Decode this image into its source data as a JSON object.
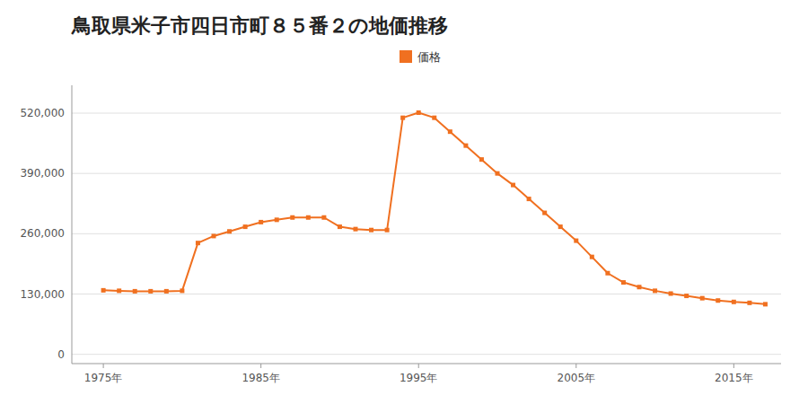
{
  "chart_data": {
    "type": "line",
    "title": "鳥取県米子市四日市町８５番２の地価推移",
    "x": [
      1975,
      1976,
      1977,
      1978,
      1979,
      1980,
      1981,
      1982,
      1983,
      1984,
      1985,
      1986,
      1987,
      1988,
      1989,
      1990,
      1991,
      1992,
      1993,
      1994,
      1995,
      1996,
      1997,
      1998,
      1999,
      2000,
      2001,
      2002,
      2003,
      2004,
      2005,
      2006,
      2007,
      2008,
      2009,
      2010,
      2011,
      2012,
      2013,
      2014,
      2015,
      2016,
      2017
    ],
    "series": [
      {
        "name": "価格",
        "color": "#f07020",
        "marker": "square",
        "values": [
          138000,
          137000,
          136000,
          136000,
          136000,
          137000,
          240000,
          255000,
          265000,
          275000,
          285000,
          290000,
          295000,
          295000,
          295000,
          275000,
          270000,
          268000,
          268000,
          510000,
          521000,
          510000,
          480000,
          450000,
          420000,
          390000,
          365000,
          335000,
          305000,
          275000,
          245000,
          210000,
          175000,
          155000,
          145000,
          137000,
          131000,
          126000,
          121000,
          116000,
          113000,
          111000,
          108000
        ]
      }
    ],
    "xlim": [
      1973,
      2018
    ],
    "xticks": [
      {
        "value": 1975,
        "label": "1975年"
      },
      {
        "value": 1985,
        "label": "1985年"
      },
      {
        "value": 1995,
        "label": "1995年"
      },
      {
        "value": 2005,
        "label": "2005年"
      },
      {
        "value": 2015,
        "label": "2015年"
      }
    ],
    "ylim": [
      -20000,
      580000
    ],
    "yticks": [
      0,
      {
        "value": 130000,
        "label": "130,000"
      },
      {
        "value": 260000,
        "label": "260,000"
      },
      {
        "value": 390000,
        "label": "390,000"
      },
      {
        "value": 520000,
        "label": "520,000"
      }
    ],
    "grid": true,
    "legend": "top"
  }
}
